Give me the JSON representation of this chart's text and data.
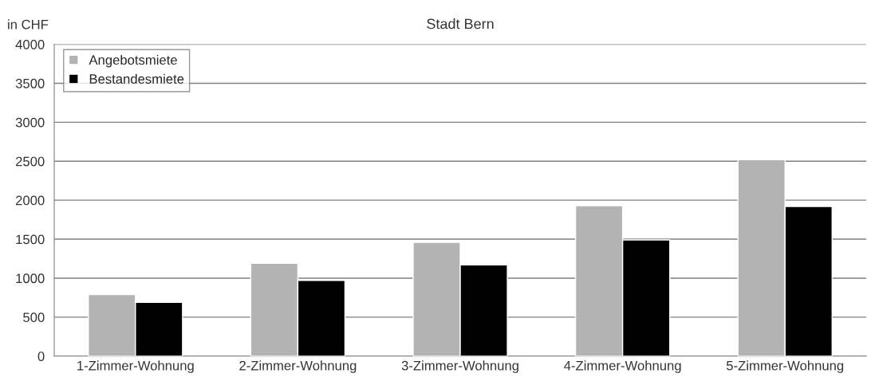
{
  "chart_data": {
    "type": "bar",
    "title": "Stadt Bern",
    "ylabel": "in CHF",
    "categories": [
      "1-Zimmer-Wohnung",
      "2-Zimmer-Wohnung",
      "3-Zimmer-Wohnung",
      "4-Zimmer-Wohnung",
      "5-Zimmer-Wohnung"
    ],
    "series": [
      {
        "name": "Angebotsmiete",
        "color": "#b3b3b3",
        "values": [
          790,
          1190,
          1460,
          1930,
          2520
        ]
      },
      {
        "name": "Bestandesmiete",
        "color": "#000000",
        "values": [
          690,
          970,
          1170,
          1490,
          1920
        ]
      }
    ],
    "ylim": [
      0,
      4000
    ],
    "yticks": [
      0,
      500,
      1000,
      1500,
      2000,
      2500,
      3000,
      3500,
      4000
    ],
    "grid": "y",
    "legend": "top left"
  }
}
